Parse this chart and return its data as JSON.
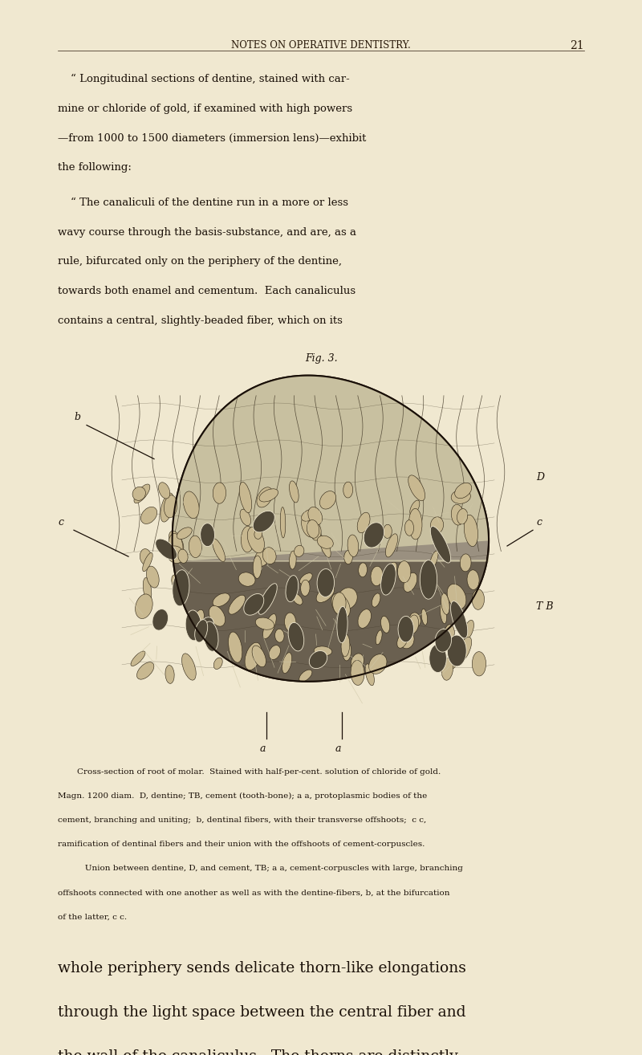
{
  "bg_color": "#f0e8d0",
  "page_width": 8.0,
  "page_height": 13.14,
  "header_text": "NOTES ON OPERATIVE DENTISTRY.",
  "page_number": "21",
  "para1_lines": [
    "“ Longitudinal sections of dentine, stained with car-",
    "mine or chloride of gold, if examined with high powers",
    "—from 1000 to 1500 diameters (immersion lens)—exhibit",
    "the following:"
  ],
  "para2_lines": [
    "“ The canaliculi of the dentine run in a more or less",
    "wavy course through the basis-substance, and are, as a",
    "rule, bifurcated only on the periphery of the dentine,",
    "towards both enamel and cementum.  Each canaliculus",
    "contains a central, slightly-beaded fiber, which on its"
  ],
  "fig_caption": "Fig. 3.",
  "caption_lines": [
    "Cross-section of root of molar.  Stained with half-per-cent. solution of chloride of gold.",
    "Magn. 1200 diam.  D, dentine; TB, cement (tooth-bone); a a, protoplasmic bodies of the",
    "cement, branching and uniting;  b, dentinal fibers, with their transverse offshoots;  c c,",
    "ramification of dentinal fibers and their union with the offshoots of cement-corpuscles.",
    "   Union between dentine, D, and cement, TB; a a, cement-corpuscles with large, branching",
    "offshoots connected with one another as well as with the dentine-fibers, b, at the bifurcation",
    "of the latter, c c."
  ],
  "para3_lines": [
    "whole periphery sends delicate thorn-like elongations",
    "through the light space between the central fiber and",
    "the wall of the canaliculus.  The thorns are distinctly"
  ],
  "text_color": "#1a1008",
  "header_color": "#2a1a0a"
}
